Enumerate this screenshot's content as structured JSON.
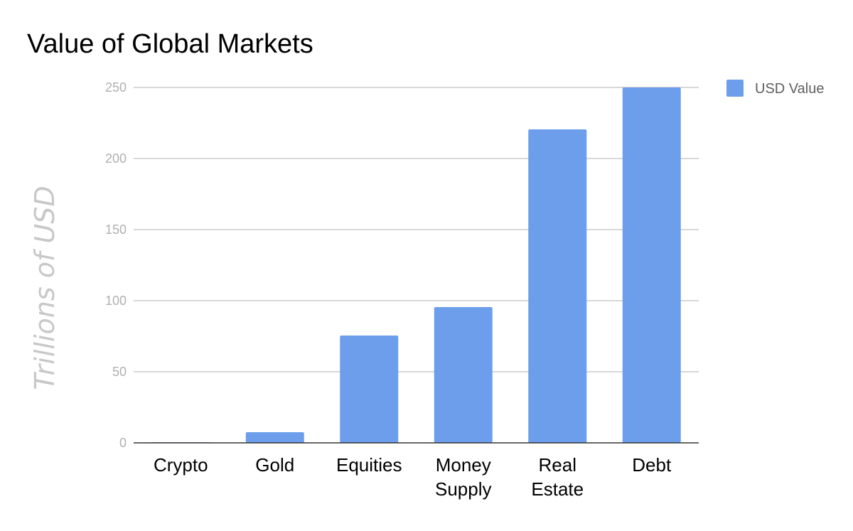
{
  "chart_data": {
    "type": "bar",
    "title": "Value of Global Markets",
    "ylabel": "Trillions of USD",
    "xlabel": "",
    "categories": [
      [
        "Crypto"
      ],
      [
        "Gold"
      ],
      [
        "Equities"
      ],
      [
        "Money",
        "Supply"
      ],
      [
        "Real",
        "Estate"
      ],
      [
        "Debt"
      ]
    ],
    "series": [
      {
        "name": "USD Value",
        "values": [
          0.4,
          7.5,
          75.5,
          95.5,
          220.5,
          250
        ],
        "color": "#6d9eeb"
      }
    ],
    "ylim": [
      0,
      250
    ],
    "yticks": [
      0,
      50,
      100,
      150,
      200,
      250
    ],
    "grid": true,
    "legend_position": "top-right"
  }
}
